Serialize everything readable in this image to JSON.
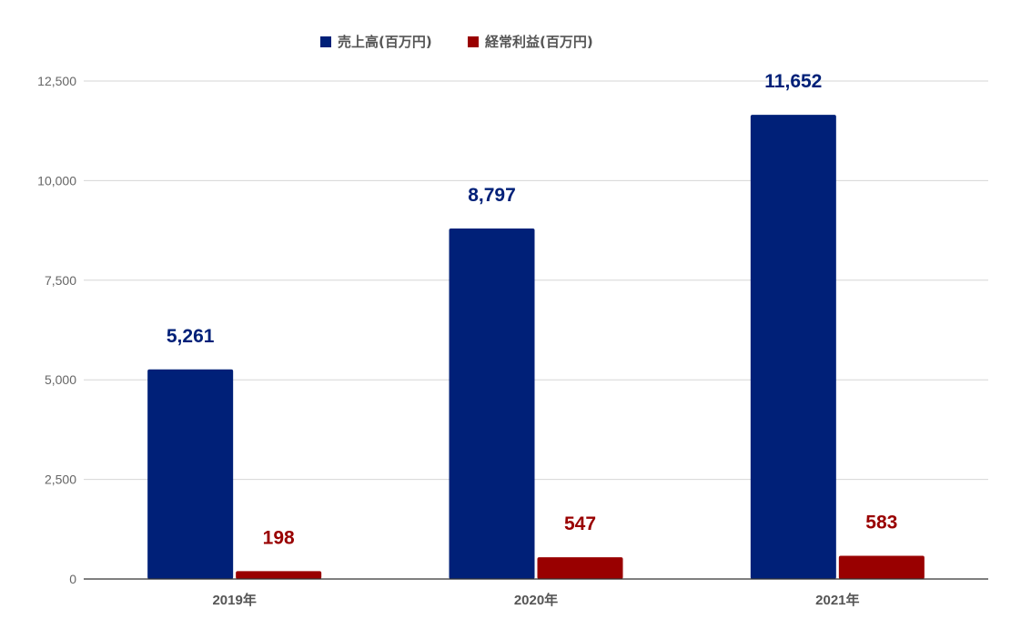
{
  "chart_data": {
    "type": "bar",
    "title": "",
    "xlabel": "",
    "ylabel": "",
    "categories": [
      "2019年",
      "2020年",
      "2021年"
    ],
    "series": [
      {
        "name": "売上高(百万円)",
        "color": "#002078",
        "label_color": "#002078",
        "values": [
          5261,
          8797,
          11652
        ],
        "labels": [
          "5,261",
          "8,797",
          "11,652"
        ]
      },
      {
        "name": "経常利益(百万円)",
        "color": "#990000",
        "label_color": "#990000",
        "values": [
          198,
          547,
          583
        ],
        "labels": [
          "198",
          "547",
          "583"
        ]
      }
    ],
    "ylim": [
      0,
      12500
    ],
    "yticks": [
      0,
      2500,
      5000,
      7500,
      10000,
      12500
    ],
    "ytick_labels": [
      "0",
      "2,500",
      "5,000",
      "7,500",
      "10,000",
      "12,500"
    ],
    "grid": true,
    "legend_position": "top-center",
    "gridline_color": "#d6d6d6",
    "axis_label_color": "#666666"
  }
}
